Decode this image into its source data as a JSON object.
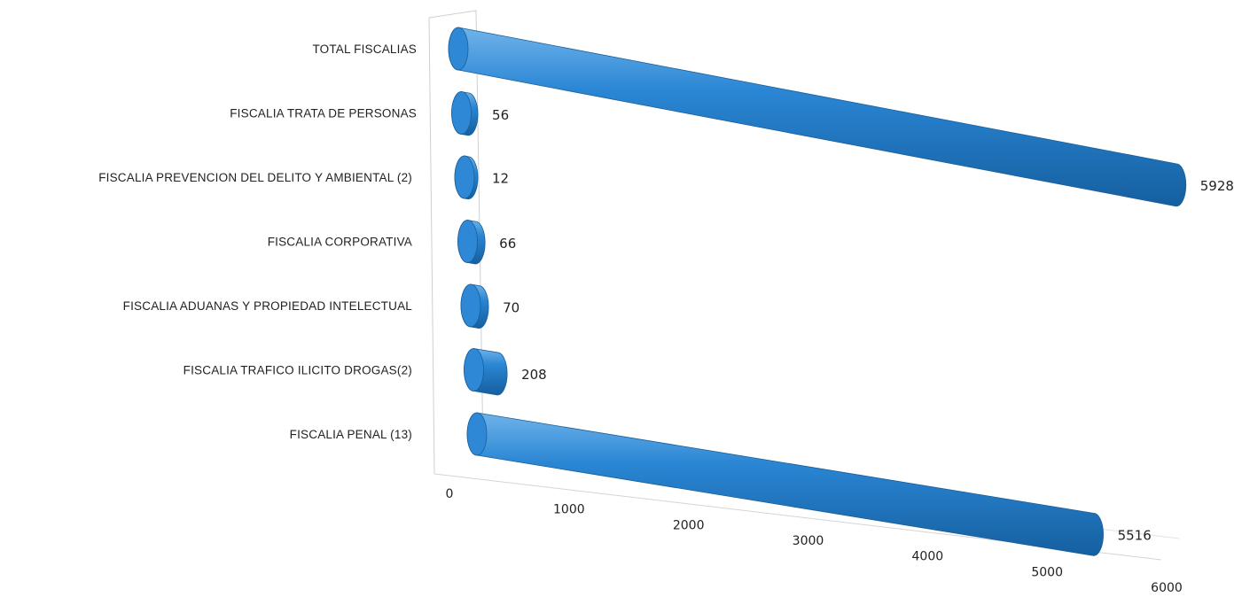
{
  "chart_data": {
    "type": "bar",
    "orientation": "horizontal",
    "style": "3d-cylinder",
    "categories": [
      "TOTAL FISCALIAS",
      "FISCALIA TRATA DE PERSONAS",
      "FISCALIA PREVENCION DEL DELITO Y AMBIENTAL (2)",
      "FISCALIA CORPORATIVA",
      "FISCALIA ADUANAS Y PROPIEDAD INTELECTUAL",
      "FISCALIA TRAFICO ILICITO  DROGAS(2)",
      "FISCALIA PENAL (13)"
    ],
    "values": [
      5928,
      56,
      12,
      66,
      70,
      208,
      5516
    ],
    "value_labels": [
      "5928",
      "56",
      "12",
      "66",
      "70",
      "208",
      "5516"
    ],
    "x_ticks": [
      "0",
      "1000",
      "2000",
      "3000",
      "4000",
      "5000",
      "6000"
    ],
    "xlim": [
      0,
      6000
    ],
    "bar_color": "#1f78c8",
    "grid": false,
    "legend": "none"
  }
}
